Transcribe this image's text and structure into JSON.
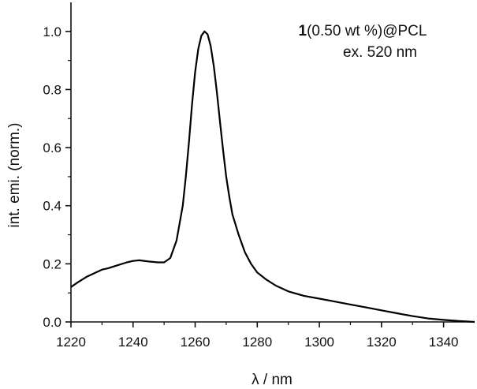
{
  "chart_data": {
    "type": "line",
    "title": "",
    "xlabel": "λ / nm",
    "ylabel": "int. emi. (norm.)",
    "xlim": [
      1220,
      1350
    ],
    "ylim": [
      0,
      1.1
    ],
    "x_ticks": [
      1220,
      1240,
      1260,
      1280,
      1300,
      1320,
      1340
    ],
    "y_ticks": [
      0.0,
      0.2,
      0.4,
      0.6,
      0.8,
      1.0
    ],
    "x_tick_labels": [
      "1220",
      "1240",
      "1260",
      "1280",
      "1300",
      "1320",
      "1340"
    ],
    "y_tick_labels": [
      "0.0",
      "0.2",
      "0.4",
      "0.6",
      "0.8",
      "1.0"
    ],
    "grid": false,
    "annotation": {
      "bold": "1",
      "rest": "(0.50 wt %)@PCL",
      "line2": "ex. 520 nm"
    },
    "series": [
      {
        "x": [
          1220,
          1222,
          1225,
          1228,
          1230,
          1232,
          1235,
          1238,
          1240,
          1242,
          1245,
          1248,
          1250,
          1252,
          1254,
          1256,
          1257,
          1258,
          1259,
          1260,
          1261,
          1262,
          1263,
          1264,
          1265,
          1266,
          1267,
          1268,
          1269,
          1270,
          1271,
          1272,
          1274,
          1276,
          1278,
          1280,
          1283,
          1286,
          1290,
          1295,
          1300,
          1305,
          1310,
          1315,
          1320,
          1325,
          1330,
          1335,
          1340,
          1345,
          1350
        ],
        "y": [
          0.12,
          0.135,
          0.155,
          0.17,
          0.18,
          0.185,
          0.195,
          0.205,
          0.21,
          0.212,
          0.208,
          0.205,
          0.205,
          0.22,
          0.28,
          0.4,
          0.5,
          0.62,
          0.75,
          0.86,
          0.94,
          0.985,
          1.0,
          0.99,
          0.95,
          0.88,
          0.79,
          0.69,
          0.59,
          0.5,
          0.43,
          0.37,
          0.3,
          0.24,
          0.2,
          0.17,
          0.145,
          0.125,
          0.105,
          0.09,
          0.08,
          0.07,
          0.06,
          0.05,
          0.04,
          0.03,
          0.02,
          0.012,
          0.007,
          0.003,
          0.0
        ]
      }
    ]
  }
}
